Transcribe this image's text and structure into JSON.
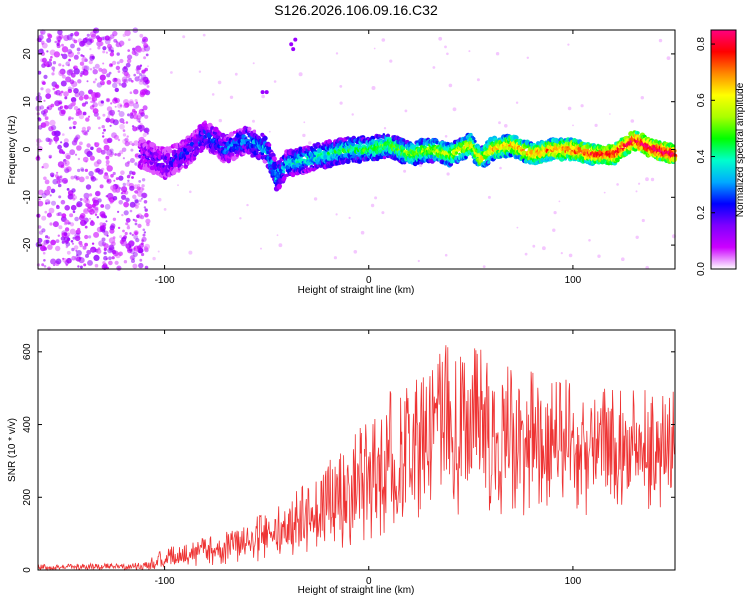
{
  "title": "S126.2026.106.09.16.C32",
  "chart_data": [
    {
      "type": "heatmap",
      "name": "spectrogram",
      "xlabel": "Height of straight line (km)",
      "ylabel": "Frequency (Hz)",
      "xlim": [
        -162,
        150
      ],
      "ylim": [
        -25,
        25
      ],
      "x_ticks": [
        -100,
        0,
        100
      ],
      "x_tick_labels": [
        "-100",
        "0",
        "100"
      ],
      "y_ticks": [
        20,
        10,
        0,
        -10,
        -20
      ],
      "y_tick_labels": [
        "20",
        "10",
        "0",
        "-10",
        "-20"
      ],
      "colorbar": {
        "label": "Normalized spectral amplitude",
        "range": [
          0,
          0.85
        ],
        "ticks": [
          0.0,
          0.2,
          0.4,
          0.6,
          0.8
        ],
        "tick_labels": [
          "0.0",
          "0.2",
          "0.4",
          "0.6",
          "0.8"
        ],
        "colors": [
          "#ffffff",
          "#cc00ff",
          "#7f00ff",
          "#0000ff",
          "#00aaff",
          "#00ffcc",
          "#00ff00",
          "#aaff00",
          "#ffff00",
          "#ff8800",
          "#ff0000",
          "#ff0080"
        ]
      },
      "ridge": {
        "description_points_x": [
          -110,
          -100,
          -90,
          -80,
          -70,
          -60,
          -50,
          -45,
          -40,
          -30,
          -20,
          -10,
          0,
          10,
          20,
          30,
          40,
          50,
          55,
          60,
          70,
          80,
          90,
          100,
          110,
          120,
          130,
          140,
          150
        ],
        "description_points_y": [
          -1,
          -3,
          -1,
          3,
          0,
          2,
          0,
          -6,
          -3,
          -2,
          -1,
          0,
          0,
          1,
          -1,
          0,
          -1,
          1,
          -2,
          0,
          1,
          -1,
          0,
          0,
          -1,
          -1,
          2,
          0,
          -1
        ]
      }
    },
    {
      "type": "line",
      "name": "snr",
      "xlabel": "Height of straight line (km)",
      "ylabel": "SNR (10 * v/v)",
      "xlim": [
        -162,
        150
      ],
      "ylim": [
        0,
        660
      ],
      "x_ticks": [
        -100,
        0,
        100
      ],
      "x_tick_labels": [
        "-100",
        "0",
        "100"
      ],
      "y_ticks": [
        0,
        200,
        400,
        600
      ],
      "y_tick_labels": [
        "0",
        "200",
        "400",
        "600"
      ],
      "color": "#ee3333",
      "envelope": {
        "x": [
          -162,
          -110,
          -100,
          -80,
          -60,
          -40,
          -20,
          0,
          20,
          40,
          60,
          80,
          100,
          120,
          150
        ],
        "low": [
          0,
          0,
          5,
          10,
          20,
          30,
          50,
          80,
          120,
          150,
          150,
          150,
          150,
          150,
          150
        ],
        "high": [
          15,
          20,
          60,
          90,
          130,
          200,
          300,
          420,
          560,
          630,
          600,
          560,
          520,
          520,
          500
        ]
      }
    }
  ]
}
